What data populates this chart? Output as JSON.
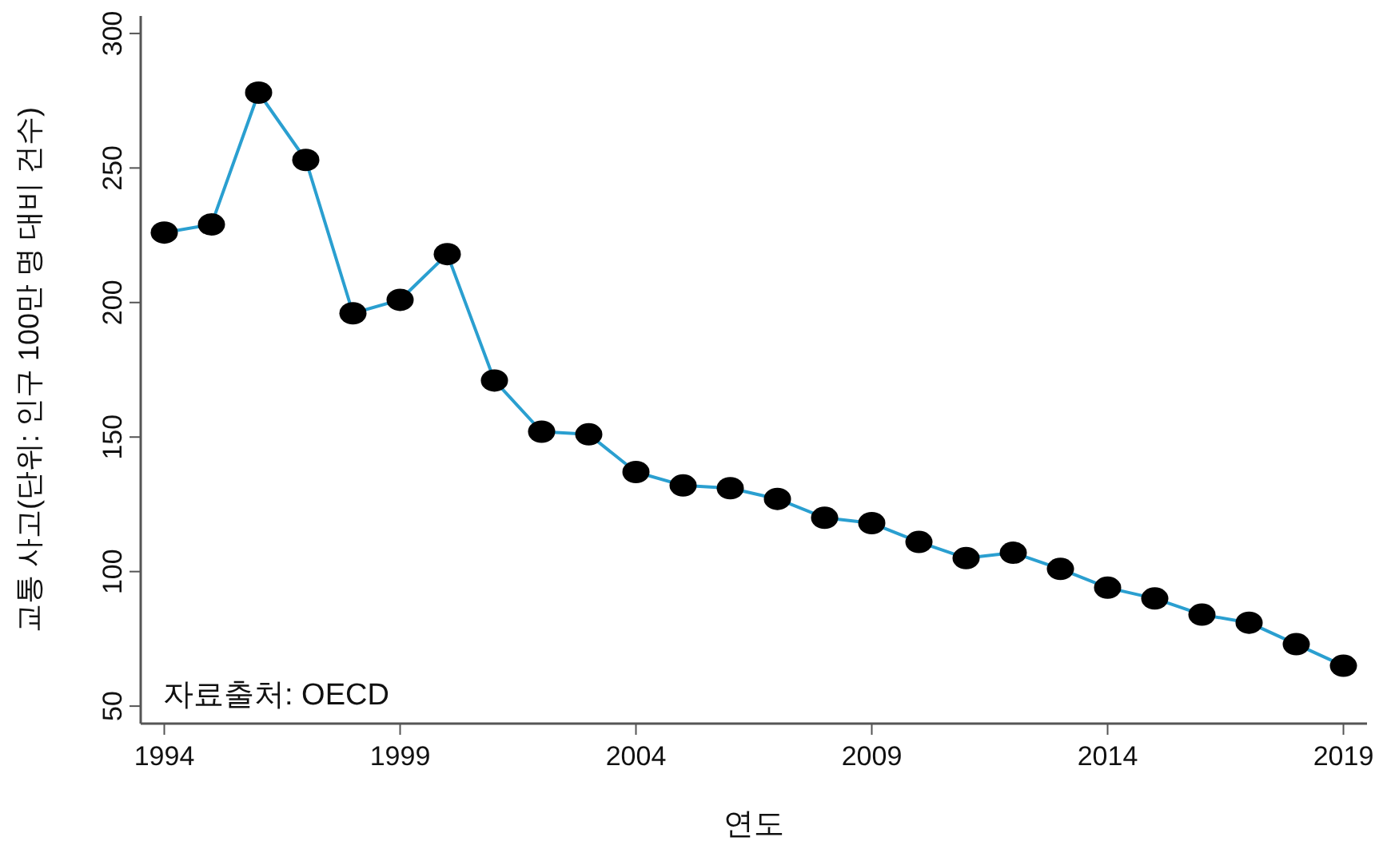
{
  "chart_data": {
    "type": "line",
    "ylabel": "교통 사고(단위: 인구 100만 명 대비 건수)",
    "xlabel": "연도",
    "annotations": [
      "자료출처: OECD"
    ],
    "x": [
      1994,
      1995,
      1996,
      1997,
      1998,
      1999,
      2000,
      2001,
      2002,
      2003,
      2004,
      2005,
      2006,
      2007,
      2008,
      2009,
      2010,
      2011,
      2012,
      2013,
      2014,
      2015,
      2016,
      2017,
      2018,
      2019
    ],
    "series": [
      {
        "color": "#2a9fd0",
        "values": [
          226,
          229,
          278,
          253,
          196,
          201,
          218,
          171,
          152,
          151,
          137,
          132,
          131,
          127,
          120,
          118,
          111,
          105,
          107,
          101,
          94,
          90,
          84,
          81,
          73,
          65
        ]
      }
    ],
    "xlim": [
      1993.5,
      2019.5
    ],
    "ylim": [
      43.5,
      306.5
    ],
    "xticks": [
      1994,
      1999,
      2004,
      2009,
      2014,
      2019
    ],
    "yticks": [
      50,
      100,
      150,
      200,
      250,
      300
    ],
    "marker": "circle",
    "grid": false
  }
}
